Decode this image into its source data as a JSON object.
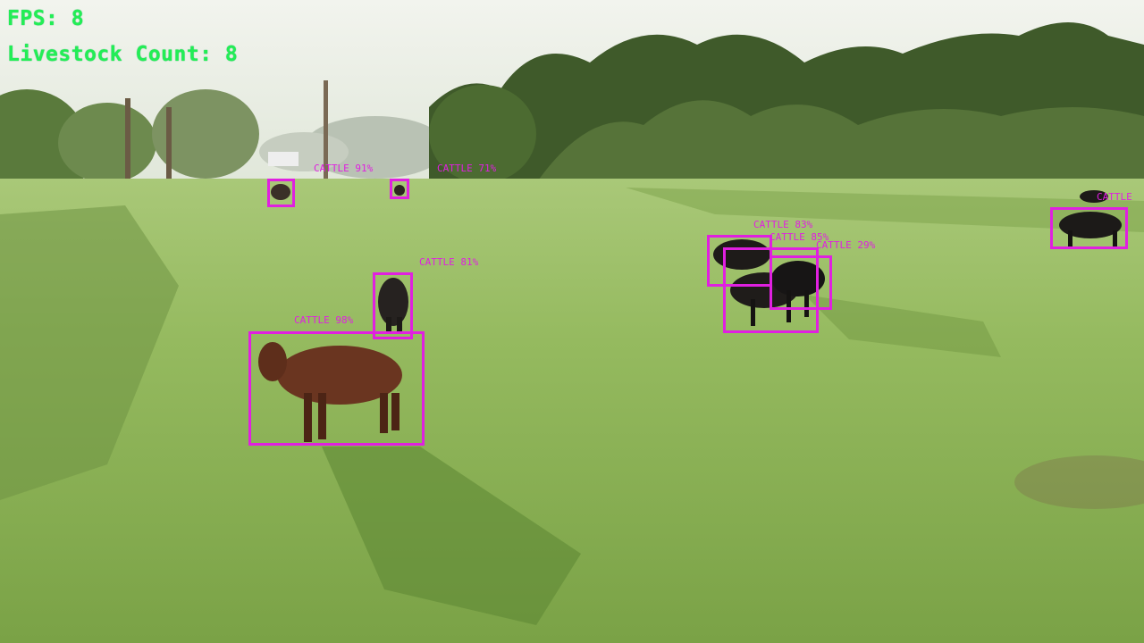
{
  "hud": {
    "fps_label": "FPS: 8",
    "count_label": "Livestock Count: 8"
  },
  "detections": [
    {
      "id": "cow-brown-front",
      "label": "CATTLE 98%"
    },
    {
      "id": "cow-black-mid",
      "label": "CATTLE 81%"
    },
    {
      "id": "cow-far-left",
      "label": "CATTLE 91%"
    },
    {
      "id": "cow-far-center",
      "label": "CATTLE 71%"
    },
    {
      "id": "cow-herd-a",
      "label": "CATTLE 83%"
    },
    {
      "id": "cow-herd-b",
      "label": "CATTLE 85%"
    },
    {
      "id": "cow-herd-c",
      "label": "CATTLE 29%"
    },
    {
      "id": "cow-right-edge",
      "label": "CATTLE"
    }
  ],
  "colors": {
    "hud_text": "#22ee55",
    "bbox": "#e020e0"
  }
}
